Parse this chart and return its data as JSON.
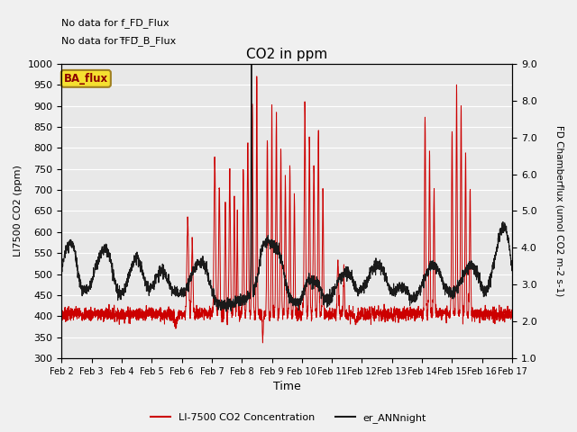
{
  "title": "CO2 in ppm",
  "xlabel": "Time",
  "ylabel_left": "LI7500 CO2 (ppm)",
  "ylabel_right": "FD Chamberflux (umol CO2 m-2 s-1)",
  "text_no_data_1": "No data for f_FD_Flux",
  "text_no_data_2": "No data for f̅FD̅_B_Flux",
  "annotation_box": "BA_flux",
  "ylim_left": [
    300,
    1000
  ],
  "ylim_right": [
    1.0,
    9.0
  ],
  "yticks_left": [
    300,
    350,
    400,
    450,
    500,
    550,
    600,
    650,
    700,
    750,
    800,
    850,
    900,
    950,
    1000
  ],
  "yticks_right": [
    1.0,
    2.0,
    3.0,
    4.0,
    5.0,
    6.0,
    7.0,
    8.0,
    9.0
  ],
  "xtick_labels": [
    "Feb 2",
    "Feb 3",
    "Feb 4",
    "Feb 5",
    "Feb 6",
    "Feb 7",
    "Feb 8",
    "Feb 9",
    "Feb 10",
    "Feb 11",
    "Feb 12",
    "Feb 13",
    "Feb 14",
    "Feb 15",
    "Feb 16",
    "Feb 17"
  ],
  "line_red_color": "#cc0000",
  "line_black_color": "#1a1a1a",
  "bg_color": "#e8e8e8",
  "legend_red_label": "LI-7500 CO2 Concentration",
  "legend_black_label": "er_ANNnight",
  "grid_color": "#ffffff",
  "n_points": 3000
}
